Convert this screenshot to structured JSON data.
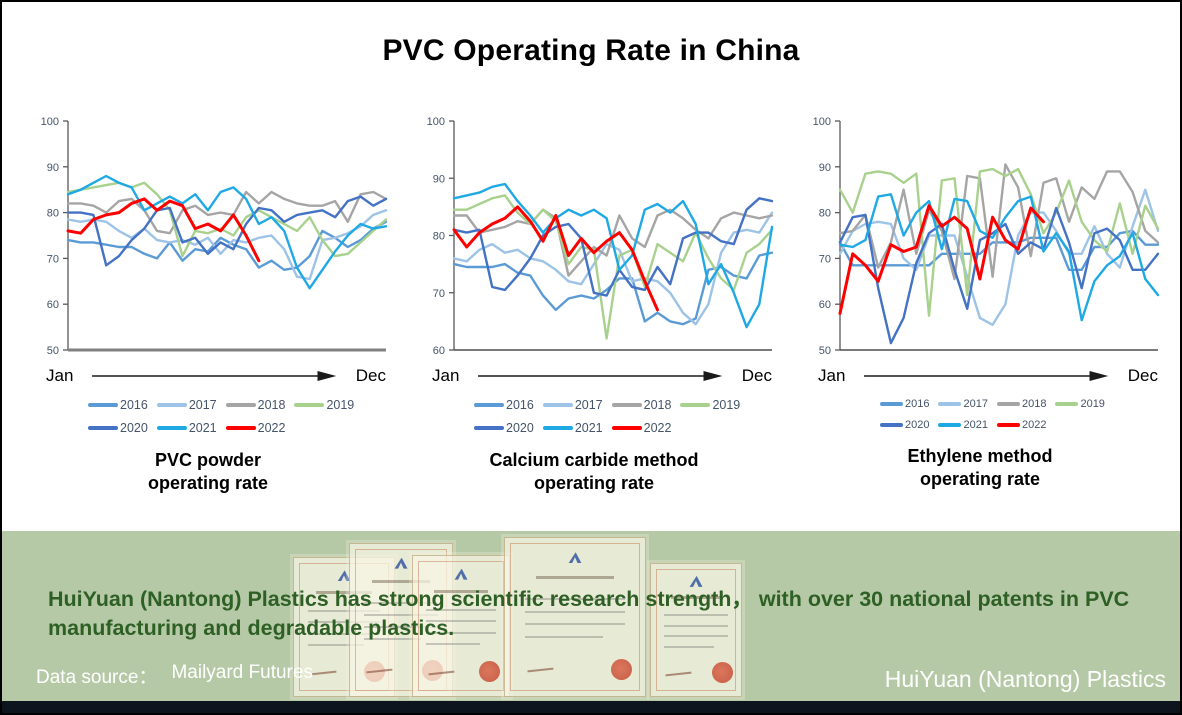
{
  "title": "PVC Operating Rate in China",
  "chart_data": [
    {
      "type": "line",
      "title": "PVC powder operating rate",
      "caption": "PVC powder\noperating rate",
      "x_start": "Jan",
      "x_end": "Dec",
      "x_note": "weekly values Jan through Dec",
      "ylim": [
        50,
        100
      ],
      "yticks": [
        100,
        90,
        80,
        70,
        60,
        50
      ],
      "points": 26,
      "grid": false,
      "legend_position": "bottom",
      "series": [
        {
          "name": "2016",
          "color": "#5B9BD5",
          "values": [
            74,
            73.5,
            73.5,
            73,
            72.5,
            72.5,
            71,
            70,
            73.5,
            69.5,
            72,
            71.5,
            74.5,
            73,
            72,
            68,
            69.5,
            67.5,
            68,
            70.5,
            76,
            74.5,
            72.5,
            74,
            76.5,
            78
          ]
        },
        {
          "name": "2017",
          "color": "#9DC3E6",
          "values": [
            78.5,
            78,
            78.5,
            78,
            76,
            74.5,
            76.5,
            74,
            73.5,
            74,
            73,
            74.5,
            71,
            74,
            73.5,
            74.5,
            75,
            72,
            66,
            65.5,
            74,
            74.5,
            75.5,
            77,
            79.5,
            80.5
          ]
        },
        {
          "name": "2018",
          "color": "#A5A5A5",
          "values": [
            82,
            82,
            81.5,
            80,
            82.5,
            83,
            80.5,
            76,
            75.5,
            80.5,
            81.5,
            79.5,
            80,
            79.5,
            84.5,
            82,
            84.5,
            83,
            82,
            81.5,
            81.5,
            82.5,
            78,
            84,
            84.5,
            83
          ]
        },
        {
          "name": "2019",
          "color": "#A9D18E",
          "values": [
            84.5,
            85,
            85.5,
            86,
            86.5,
            85.5,
            86.5,
            84,
            80.5,
            70.5,
            76,
            75.5,
            76.5,
            75,
            79,
            80.5,
            79,
            77.5,
            76,
            79,
            74,
            70.5,
            71,
            73.5,
            76,
            78.5
          ]
        },
        {
          "name": "2020",
          "color": "#4472C4",
          "values": [
            80,
            80,
            79.5,
            68.5,
            70.5,
            74,
            76.5,
            80.5,
            81,
            73.5,
            74.5,
            71,
            73.5,
            72,
            77.5,
            81,
            80.5,
            78,
            79.5,
            80,
            80.5,
            79,
            82.5,
            83.5,
            81.5,
            83
          ]
        },
        {
          "name": "2021",
          "color": "#1FA9E4",
          "values": [
            84,
            85,
            86.5,
            88,
            86.5,
            85.5,
            80.5,
            82,
            83.5,
            82,
            84,
            80.5,
            84.5,
            85.5,
            83,
            77.5,
            79,
            76,
            68,
            63.5,
            67.5,
            71.5,
            75,
            77.5,
            76.5,
            77
          ]
        },
        {
          "name": "2022",
          "color": "#FE0000",
          "values": [
            76,
            75.5,
            78.5,
            79.5,
            80,
            82,
            83,
            80.5,
            82.5,
            81.5,
            76.5,
            77.5,
            76,
            79.5,
            75,
            69.5
          ]
        }
      ]
    },
    {
      "type": "line",
      "title": "Calcium carbide method operating rate",
      "caption": "Calcium carbide method\noperating rate",
      "x_start": "Jan",
      "x_end": "Dec",
      "x_note": "weekly values Jan through Dec",
      "ylim": [
        60,
        100
      ],
      "yticks": [
        100,
        90,
        80,
        70,
        60
      ],
      "points": 26,
      "grid": false,
      "legend_position": "bottom",
      "series": [
        {
          "name": "2016",
          "color": "#5B9BD5",
          "values": [
            75,
            74.5,
            74.5,
            74.5,
            75,
            73.5,
            73,
            69.5,
            67,
            69,
            69.5,
            69,
            70.5,
            72.5,
            72.5,
            65,
            66.5,
            65,
            64.5,
            65.5,
            74,
            74.5,
            73,
            72.5,
            76.5,
            77
          ]
        },
        {
          "name": "2017",
          "color": "#9DC3E6",
          "values": [
            76,
            75.5,
            77.5,
            78.5,
            77,
            77.5,
            76,
            75.5,
            74,
            72,
            71.5,
            75,
            78.5,
            77.5,
            72,
            72.5,
            72,
            70,
            66.5,
            64.5,
            68,
            77,
            80.5,
            81,
            80.5,
            84
          ]
        },
        {
          "name": "2018",
          "color": "#A5A5A5",
          "values": [
            83.5,
            83.5,
            80.5,
            81,
            81.5,
            82.5,
            82,
            84.5,
            83,
            73,
            75.5,
            78,
            76.5,
            83.5,
            79.5,
            78,
            83.5,
            84.5,
            83,
            81,
            79.5,
            83,
            84,
            83.5,
            83,
            83.5
          ]
        },
        {
          "name": "2019",
          "color": "#A9D18E",
          "values": [
            84.5,
            84.5,
            85.5,
            86.5,
            87,
            84,
            82,
            84.5,
            82.5,
            75,
            78,
            77.5,
            62,
            76.5,
            77.5,
            71,
            78.5,
            77,
            75.5,
            80.5,
            76,
            72.5,
            70.5,
            77,
            78.5,
            81
          ]
        },
        {
          "name": "2020",
          "color": "#4472C4",
          "values": [
            81,
            80.5,
            81,
            71,
            70.5,
            73,
            76,
            80,
            81.5,
            82,
            79.5,
            70,
            69.5,
            74,
            71,
            70.5,
            74.5,
            71.5,
            79.5,
            80.5,
            80.5,
            79,
            78.5,
            84.5,
            86.5,
            86
          ]
        },
        {
          "name": "2021",
          "color": "#1FA9E4",
          "values": [
            86.5,
            87,
            87.5,
            88.5,
            89,
            86,
            83.5,
            80.5,
            83,
            84.5,
            83.5,
            84.5,
            83,
            74,
            76.5,
            84.5,
            85.5,
            84,
            86,
            82,
            71.5,
            75,
            70,
            64,
            68,
            81.5
          ]
        },
        {
          "name": "2022",
          "color": "#FE0000",
          "values": [
            81,
            78,
            80.5,
            82,
            83,
            85,
            82.5,
            79,
            83.5,
            76.5,
            79.5,
            77,
            79,
            80.5,
            77.5,
            72,
            67
          ]
        }
      ]
    },
    {
      "type": "line",
      "title": "Ethylene method operating rate",
      "caption": "Ethylene method\noperating rate",
      "x_start": "Jan",
      "x_end": "Dec",
      "x_note": "weekly values Jan through Dec",
      "ylim": [
        50,
        100
      ],
      "yticks": [
        100,
        90,
        80,
        70,
        60,
        50
      ],
      "points": 26,
      "grid": false,
      "legend_position": "bottom",
      "series": [
        {
          "name": "2016",
          "color": "#5B9BD5",
          "values": [
            73.5,
            68.5,
            68.5,
            68.5,
            68.5,
            68.5,
            68.5,
            68.5,
            71,
            71,
            71,
            71,
            73.5,
            73.5,
            73.5,
            74.5,
            74.5,
            74.5,
            67.5,
            67.5,
            72.5,
            72.5,
            75.5,
            76,
            73,
            73
          ]
        },
        {
          "name": "2017",
          "color": "#9DC3E6",
          "values": [
            71,
            76,
            77.5,
            78,
            77.5,
            70,
            67.5,
            75,
            75,
            75,
            66,
            57,
            55.5,
            60,
            75,
            80,
            80,
            76,
            71,
            71,
            77,
            71,
            68,
            77,
            85,
            76
          ]
        },
        {
          "name": "2018",
          "color": "#A5A5A5",
          "values": [
            75.5,
            76,
            79.5,
            68,
            73.5,
            85,
            71,
            80.5,
            76,
            65.5,
            88,
            87.5,
            66,
            90.5,
            85.5,
            70.5,
            86.5,
            87.5,
            78,
            85.5,
            83,
            89,
            89,
            84.5,
            76,
            73.5
          ]
        },
        {
          "name": "2019",
          "color": "#A9D18E",
          "values": [
            85,
            80,
            88.5,
            89,
            88.5,
            86.5,
            88.5,
            57.5,
            87,
            87.5,
            62,
            89,
            89.5,
            88,
            89.5,
            84,
            75.5,
            80,
            87,
            78,
            74,
            71.5,
            82,
            71,
            81.5,
            76.5
          ]
        },
        {
          "name": "2020",
          "color": "#4472C4",
          "values": [
            73.5,
            79,
            79.5,
            63.5,
            51.5,
            57,
            69,
            75.5,
            77.5,
            67.5,
            59,
            74,
            75.5,
            77.5,
            71,
            73.5,
            72,
            81,
            73.5,
            63.5,
            75.5,
            76.5,
            74,
            67.5,
            67.5,
            71
          ]
        },
        {
          "name": "2021",
          "color": "#1FA9E4",
          "values": [
            73,
            72.5,
            74,
            83.5,
            84,
            75,
            80,
            82.5,
            72,
            83,
            82.5,
            76,
            74.5,
            79,
            82.5,
            83.5,
            71.5,
            75.5,
            71.5,
            56.5,
            65,
            68.5,
            70.5,
            75.5,
            65.5,
            62
          ]
        },
        {
          "name": "2022",
          "color": "#FE0000",
          "values": [
            58,
            71,
            68.5,
            65,
            73,
            71.5,
            72.5,
            81.5,
            77,
            79,
            76.5,
            65.5,
            79,
            74,
            72,
            81,
            78
          ]
        }
      ]
    }
  ],
  "axis_style": {
    "tick_label_color": "#44546A",
    "axis_color": "#595959"
  },
  "banner": {
    "headline": "HuiYuan (Nantong) Plastics has strong scientific research strength， with over 30 national patents in PVC manufacturing and degradable plastics.",
    "data_source_label": "Data source：",
    "data_source_value": "Mailyard Futures",
    "company": "HuiYuan (Nantong) Plastics",
    "bg_color": "#b6c9a6",
    "headline_color": "#2e6026",
    "footer_bar_color": "#0d141d"
  }
}
